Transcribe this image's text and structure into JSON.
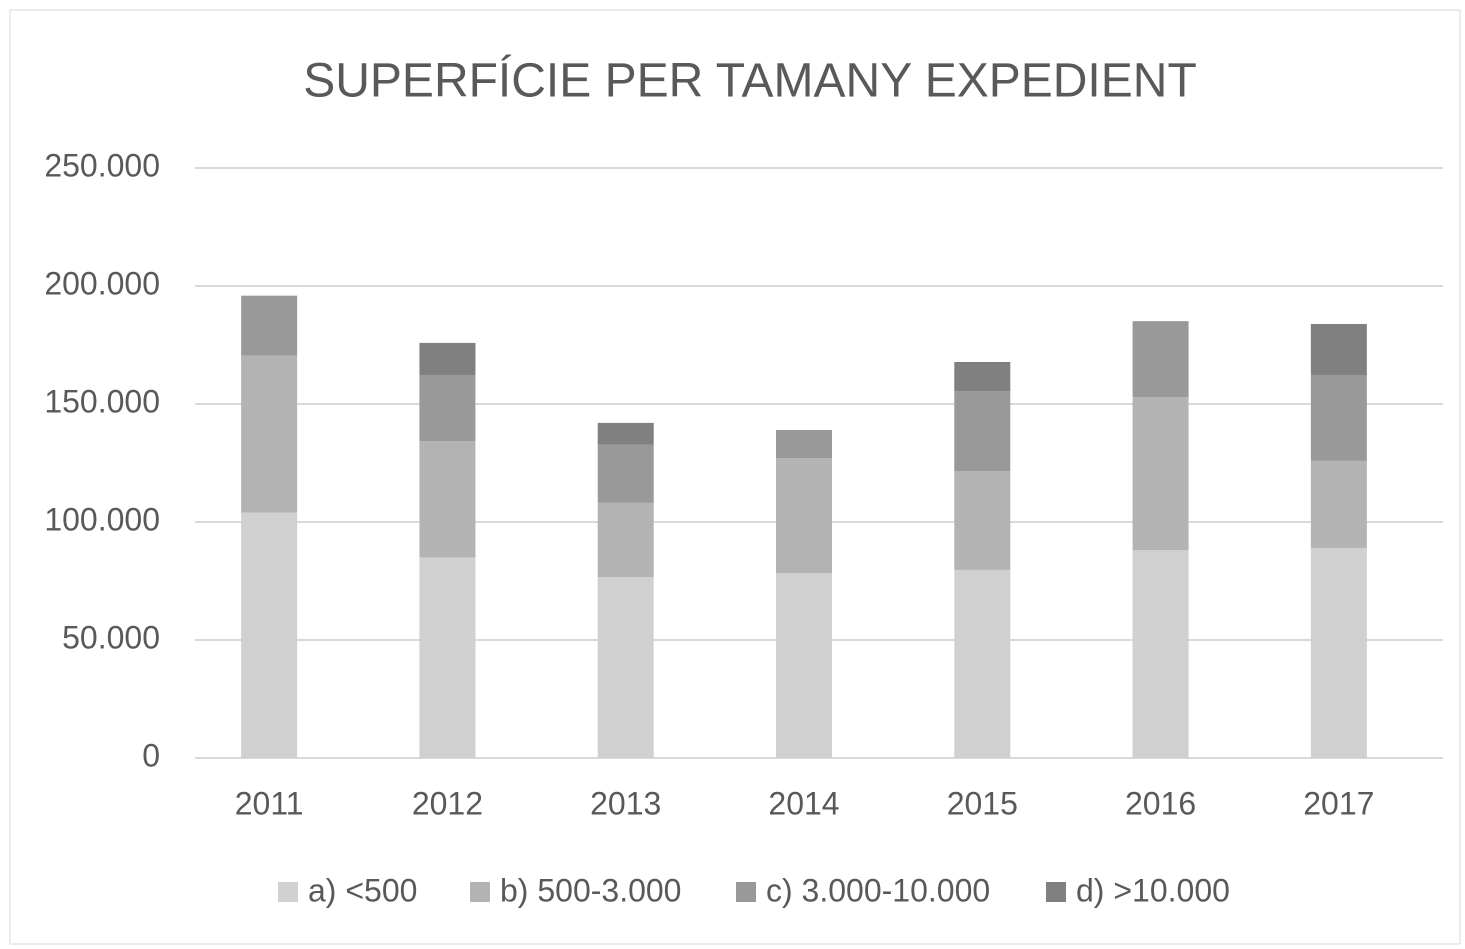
{
  "chart_data": {
    "type": "stacked_bar",
    "title": "SUPERFÍCIE PER TAMANY EXPEDIENT",
    "categories": [
      "2011",
      "2012",
      "2013",
      "2014",
      "2015",
      "2016",
      "2017"
    ],
    "series": [
      {
        "name": "a) <500",
        "color": "#d0d0d0",
        "values": [
          104000,
          85000,
          76700,
          78400,
          79700,
          88100,
          89000
        ]
      },
      {
        "name": "b) 500-3.000",
        "color": "#b3b3b3",
        "values": [
          66500,
          49300,
          31400,
          48700,
          41900,
          64800,
          36900
        ]
      },
      {
        "name": "c) 3.000-10.000",
        "color": "#999999",
        "values": [
          25400,
          28000,
          24600,
          11900,
          33900,
          32200,
          36400
        ]
      },
      {
        "name": "d) >10.000",
        "color": "#808080",
        "values": [
          0,
          13600,
          9300,
          0,
          12300,
          0,
          21600
        ]
      }
    ],
    "ylim": [
      0,
      250000
    ],
    "yticks": [
      0,
      {
        "value": 50000,
        "label": "50.000"
      },
      {
        "value": 100000,
        "label": "100.000"
      },
      {
        "value": 150000,
        "label": "150.000"
      },
      {
        "value": 200000,
        "label": "200.000"
      },
      {
        "value": 250000,
        "label": "250.000"
      }
    ],
    "grid": true,
    "legend": "bottom"
  }
}
